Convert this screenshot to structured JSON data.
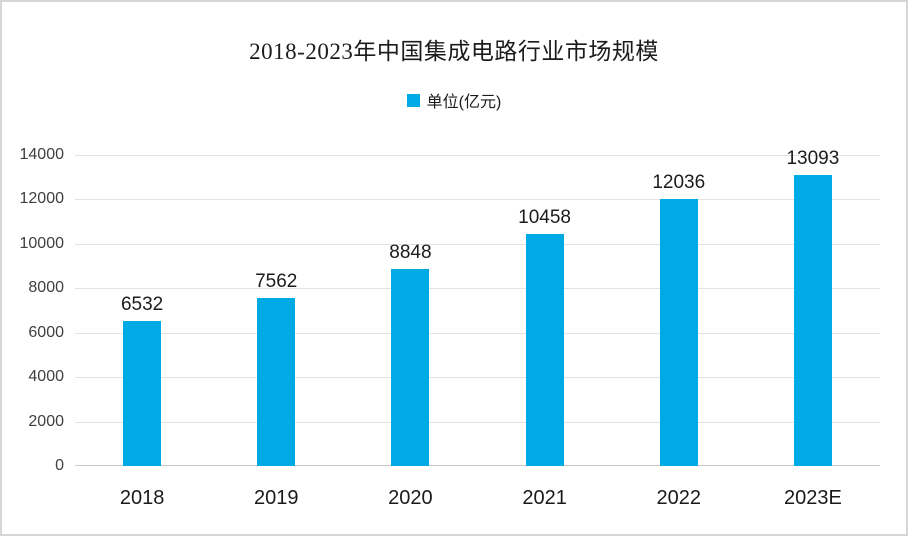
{
  "chart_data": {
    "type": "bar",
    "title": "2018-2023年中国集成电路行业市场规模",
    "legend": "单位(亿元)",
    "legend_position": "top",
    "categories": [
      "2018",
      "2019",
      "2020",
      "2021",
      "2022",
      "2023E"
    ],
    "values": [
      6532,
      7562,
      8848,
      10458,
      12036,
      13093
    ],
    "ylim": [
      0,
      14000
    ],
    "yticks": [
      0,
      2000,
      4000,
      6000,
      8000,
      10000,
      12000,
      14000
    ],
    "grid": true
  },
  "colors": {
    "bar": "#00aae4",
    "grid": "#e3e3e3",
    "axis": "#c9c9c9",
    "frame_border": "#d6d6d6",
    "title_text": "#1c1c1c",
    "tick_text": "#3f3f3f",
    "value_text": "#1c1c1c"
  }
}
